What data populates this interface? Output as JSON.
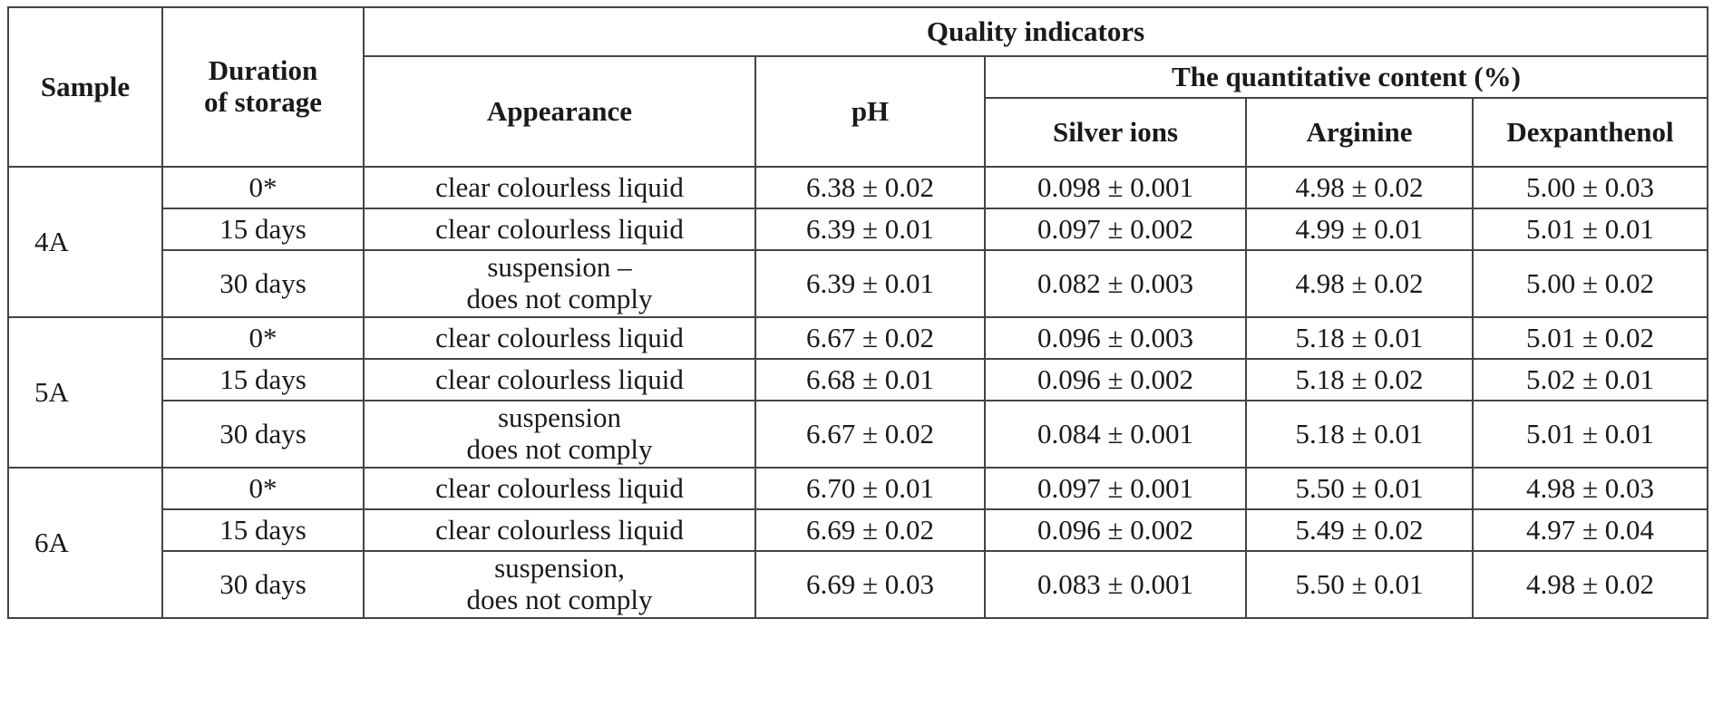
{
  "header": {
    "sample": "Sample",
    "duration_line1": "Duration",
    "duration_line2": "of storage",
    "quality_indicators": "Quality indicators",
    "appearance": "Appearance",
    "ph": "pH",
    "quantitative_content": "The quantitative content (%)",
    "silver_ions": "Silver ions",
    "arginine": "Arginine",
    "dexpanthenol": "Dexpanthenol"
  },
  "groups": [
    {
      "sample": "4A",
      "rows": [
        {
          "duration": "0*",
          "appearance": [
            "clear colourless liquid"
          ],
          "ph": "6.38 ± 0.02",
          "silver": "0.098 ± 0.001",
          "arginine": "4.98 ± 0.02",
          "dexpanthenol": "5.00 ± 0.03"
        },
        {
          "duration": "15 days",
          "appearance": [
            "clear colourless liquid"
          ],
          "ph": "6.39 ± 0.01",
          "silver": "0.097 ± 0.002",
          "arginine": "4.99 ± 0.01",
          "dexpanthenol": "5.01 ± 0.01"
        },
        {
          "duration": "30 days",
          "appearance": [
            "suspension –",
            "does not comply"
          ],
          "ph": "6.39 ± 0.01",
          "silver": "0.082 ± 0.003",
          "arginine": "4.98 ± 0.02",
          "dexpanthenol": "5.00 ± 0.02"
        }
      ]
    },
    {
      "sample": "5A",
      "rows": [
        {
          "duration": "0*",
          "appearance": [
            "clear colourless liquid"
          ],
          "ph": "6.67 ± 0.02",
          "silver": "0.096 ± 0.003",
          "arginine": "5.18 ± 0.01",
          "dexpanthenol": "5.01 ± 0.02"
        },
        {
          "duration": "15 days",
          "appearance": [
            "clear colourless liquid"
          ],
          "ph": "6.68 ± 0.01",
          "silver": "0.096 ± 0.002",
          "arginine": "5.18 ± 0.02",
          "dexpanthenol": "5.02 ± 0.01"
        },
        {
          "duration": "30 days",
          "appearance": [
            "suspension",
            "does not comply"
          ],
          "ph": "6.67 ± 0.02",
          "silver": "0.084 ± 0.001",
          "arginine": "5.18 ± 0.01",
          "dexpanthenol": "5.01 ± 0.01"
        }
      ]
    },
    {
      "sample": "6A",
      "rows": [
        {
          "duration": "0*",
          "appearance": [
            "clear colourless liquid"
          ],
          "ph": "6.70 ± 0.01",
          "silver": "0.097 ± 0.001",
          "arginine": "5.50 ± 0.01",
          "dexpanthenol": "4.98 ± 0.03"
        },
        {
          "duration": "15 days",
          "appearance": [
            "clear colourless liquid"
          ],
          "ph": "6.69 ± 0.02",
          "silver": "0.096 ± 0.002",
          "arginine": "5.49 ± 0.02",
          "dexpanthenol": "4.97 ± 0.04"
        },
        {
          "duration": "30 days",
          "appearance": [
            "suspension,",
            "does not comply"
          ],
          "ph": "6.69 ± 0.03",
          "silver": "0.083 ± 0.001",
          "arginine": "5.50 ± 0.01",
          "dexpanthenol": "4.98 ± 0.02"
        }
      ]
    }
  ]
}
